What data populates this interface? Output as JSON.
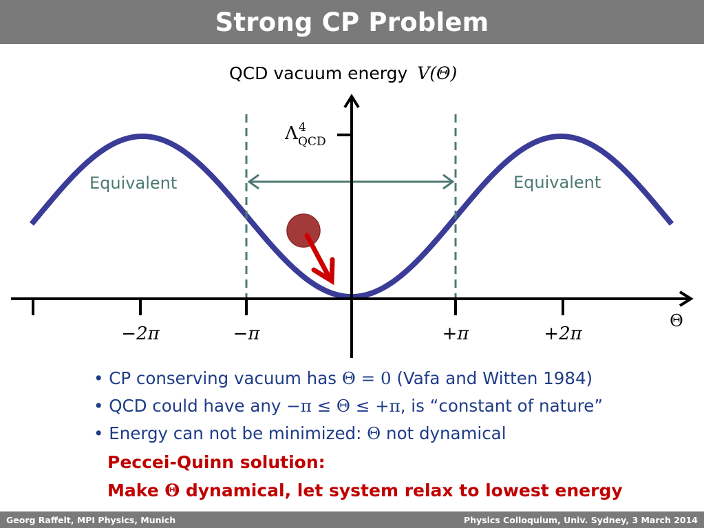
{
  "header": {
    "title": "Strong CP Problem"
  },
  "diagram": {
    "title": "QCD vacuum energy",
    "title_math": "V(Θ)",
    "lambda_label": "Λ",
    "lambda_sup": "4",
    "lambda_sub": "QCD",
    "equivalent_left": "Equivalent",
    "equivalent_right": "Equivalent",
    "axis_label": "Θ",
    "tick_labels": [
      "−2π",
      "−π",
      "+π",
      "+2π"
    ],
    "colors": {
      "curve": "#3b3b98",
      "ball": "#a33a3a",
      "arrow": "#cc0000",
      "dashed": "#4d7a72",
      "axis": "#000000"
    }
  },
  "bullets": [
    {
      "pre": "CP conserving vacuum has ",
      "math": "Θ = 0",
      "post": " (Vafa and Witten 1984)"
    },
    {
      "pre": "QCD could have any ",
      "math": "−π ≤ Θ ≤ +π",
      "post": ", is “constant of nature”"
    },
    {
      "pre": "Energy can not be minimized: ",
      "math": "Θ",
      "post": " not dynamical"
    }
  ],
  "solution": {
    "line1": "Peccei-Quinn solution:",
    "line2_pre": "Make ",
    "line2_math": "Θ",
    "line2_post": " dynamical, let system relax to lowest energy"
  },
  "footer": {
    "left": "Georg Raffelt, MPI Physics, Munich",
    "right": "Physics Colloquium, Univ. Sydney, 3 March 2014"
  }
}
